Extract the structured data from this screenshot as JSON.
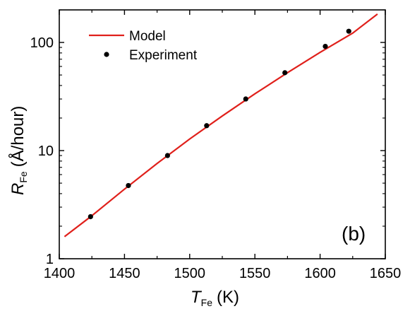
{
  "chart_data": {
    "type": "line",
    "panel_label": "(b)",
    "xaxis": {
      "symbol": "T",
      "subscript": "Fe",
      "unit": "(K)",
      "range": [
        1400,
        1650
      ],
      "ticks": [
        1400,
        1450,
        1500,
        1550,
        1600,
        1650
      ],
      "tick_labels": [
        "1400",
        "1450",
        "1500",
        "1550",
        "1600",
        "1650"
      ]
    },
    "yaxis": {
      "symbol": "R",
      "subscript": "Fe",
      "unit": "(Å/hour)",
      "scale": "log",
      "range": [
        1,
        200
      ],
      "ticks": [
        1,
        10,
        100
      ],
      "tick_labels": [
        "1",
        "10",
        "100"
      ]
    },
    "grid": false,
    "legend_position": "top-left",
    "series": [
      {
        "name": "Model",
        "kind": "line",
        "color": "#e0201b",
        "x": [
          1404,
          1425,
          1450,
          1475,
          1500,
          1525,
          1550,
          1575,
          1600,
          1625,
          1644
        ],
        "y": [
          1.6,
          2.5,
          4.4,
          7.6,
          12.8,
          20.9,
          33.5,
          52.5,
          81,
          122,
          183
        ]
      },
      {
        "name": "Experiment",
        "kind": "scatter",
        "color": "#000000",
        "x": [
          1424,
          1453,
          1483,
          1513,
          1543,
          1573,
          1604,
          1622
        ],
        "y": [
          2.45,
          4.75,
          9.0,
          17.0,
          30.0,
          52.5,
          92,
          127
        ]
      }
    ]
  }
}
